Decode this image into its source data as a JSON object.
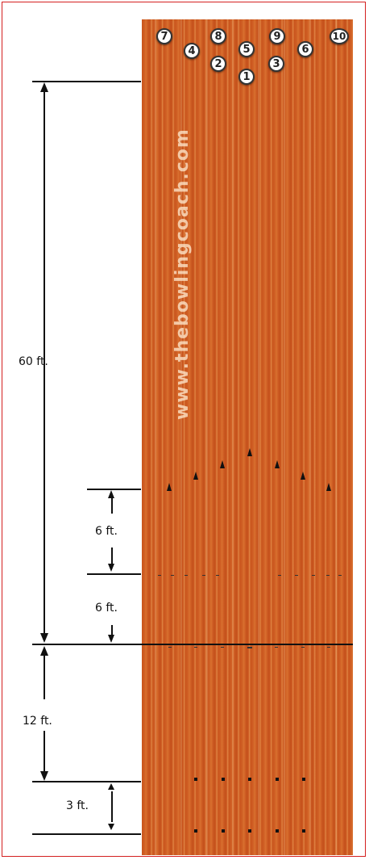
{
  "pins": [
    "7",
    "4",
    "8",
    "2",
    "5",
    "1",
    "9",
    "3",
    "6",
    "10"
  ],
  "watermark": "www.thebowlingcoach.com",
  "measurements": {
    "total": "60 ft.",
    "arrows_to_dots": "6 ft.",
    "dots_to_foul": "6 ft.",
    "foul_to_approach": "12 ft.",
    "approach_gap": "3 ft."
  }
}
